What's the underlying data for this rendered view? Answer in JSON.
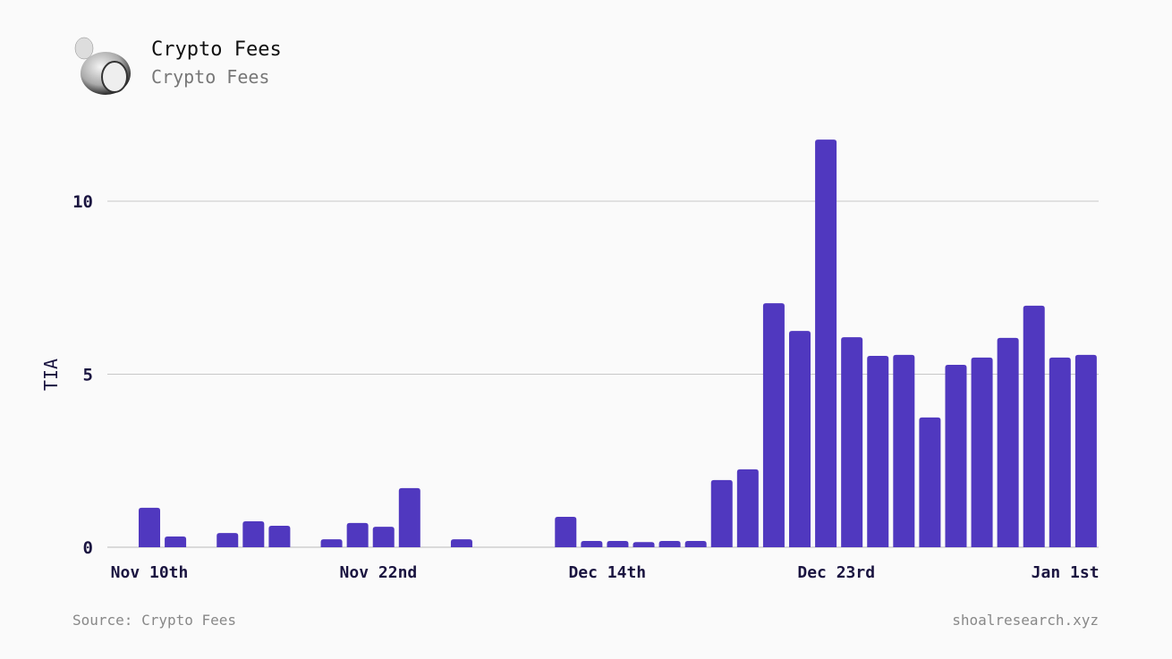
{
  "header": {
    "title": "Crypto Fees",
    "subtitle": "Crypto Fees"
  },
  "footer": {
    "source": "Source: Crypto Fees",
    "site": "shoalresearch.xyz"
  },
  "colors": {
    "bar": "#5038bf",
    "grid": "#c8c8c8",
    "axis_text": "#1a1440"
  },
  "chart_data": {
    "type": "bar",
    "title": "Crypto Fees",
    "xlabel": "",
    "ylabel": "TIA",
    "ylim": [
      0,
      12
    ],
    "yticks": [
      0,
      5,
      10
    ],
    "grid": true,
    "xtick_labels": [
      {
        "label": "Nov 10th",
        "index": 0
      },
      {
        "label": "Nov 22nd",
        "index": 8.8
      },
      {
        "label": "Dec 14th",
        "index": 17.6
      },
      {
        "label": "Dec 23rd",
        "index": 26.4
      },
      {
        "label": "Jan 1st",
        "index": 35.2
      }
    ],
    "values": [
      1.14,
      0.31,
      0,
      0.41,
      0.75,
      0.62,
      0,
      0.23,
      0.7,
      0.59,
      1.71,
      0,
      0.23,
      0,
      0,
      0,
      0.88,
      0.18,
      0.18,
      0.15,
      0.18,
      0.18,
      1.94,
      2.25,
      7.05,
      6.25,
      11.78,
      6.07,
      5.53,
      5.56,
      3.75,
      5.27,
      5.48,
      6.05,
      6.98,
      5.48,
      5.56
    ]
  }
}
